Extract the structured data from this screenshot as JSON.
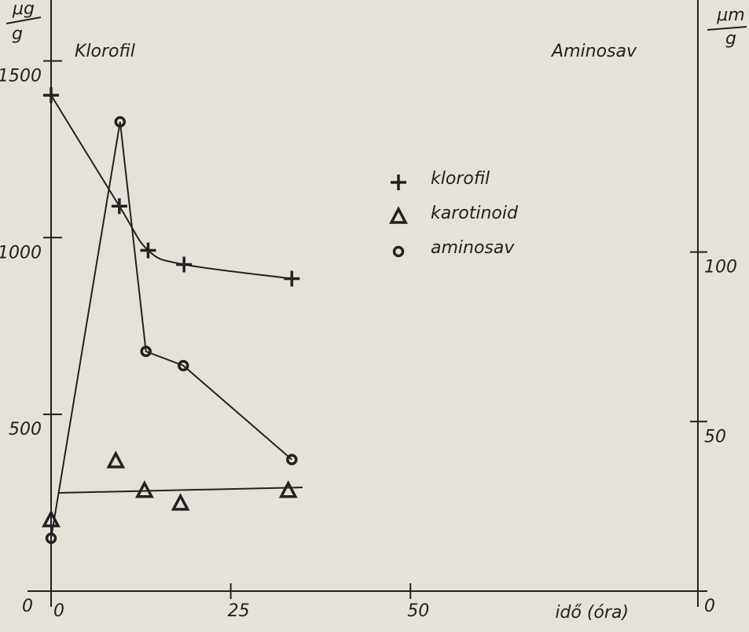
{
  "chart_data": {
    "type": "line",
    "ylabel": {
      "top": "μg",
      "bottom": "g"
    },
    "y2label": {
      "top": "μm",
      "bottom": "g"
    },
    "left_title": "Klorofil",
    "right_title": "Aminosav",
    "xlabel": "idő (óra)",
    "xlim": [
      0,
      90
    ],
    "xticks": [
      0,
      25,
      50
    ],
    "ylim": [
      0,
      1650
    ],
    "yticks": [
      0,
      500,
      1000,
      1500
    ],
    "y2lim": [
      0,
      172
    ],
    "y2ticks": [
      0,
      50,
      100
    ],
    "series": [
      {
        "name": "klorofil",
        "color": "#222",
        "marker": "plus",
        "curve": "smooth",
        "x": [
          0,
          9.5,
          13.5,
          18.5,
          33.5
        ],
        "values": [
          1403,
          1089,
          964,
          924,
          884
        ]
      },
      {
        "name": "karotinoid",
        "color": "#222",
        "marker": "triangle",
        "curve": "none",
        "x": [
          0,
          9,
          13,
          18,
          33
        ],
        "values": [
          200,
          367,
          283,
          247,
          283
        ]
      },
      {
        "name": "aminosav",
        "color": "#222",
        "marker": "circle",
        "curve": "straight",
        "axis": "y2",
        "x": [
          0,
          9.6,
          13.2,
          18.4,
          33.5
        ],
        "values": [
          15.6,
          138.4,
          70.7,
          66.5,
          38.8
        ]
      }
    ]
  }
}
